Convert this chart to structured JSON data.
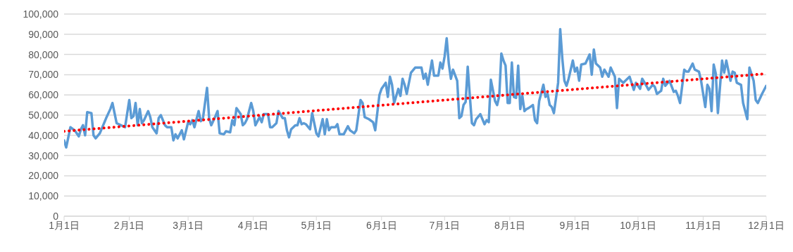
{
  "chart_data": {
    "type": "line",
    "grid": "y",
    "marker": "none",
    "xlim": [
      "--01-01",
      "--12-01"
    ],
    "xticks": [
      {
        "value": "--01-01",
        "label": "1月1日"
      },
      {
        "value": "--02-01",
        "label": "2月1日"
      },
      {
        "value": "--03-01",
        "label": "3月1日"
      },
      {
        "value": "--04-01",
        "label": "4月1日"
      },
      {
        "value": "--05-01",
        "label": "5月1日"
      },
      {
        "value": "--06-01",
        "label": "6月1日"
      },
      {
        "value": "--07-01",
        "label": "7月1日"
      },
      {
        "value": "--08-01",
        "label": "8月1日"
      },
      {
        "value": "--09-01",
        "label": "9月1日"
      },
      {
        "value": "--10-01",
        "label": "10月1日"
      },
      {
        "value": "--11-01",
        "label": "11月1日"
      },
      {
        "value": "--12-01",
        "label": "12月1日"
      }
    ],
    "ylim": [
      0,
      100000
    ],
    "yticks": [
      0,
      {
        "value": 10000,
        "label": "10,000"
      },
      {
        "value": 20000,
        "label": "20,000"
      },
      {
        "value": 30000,
        "label": "30,000"
      },
      {
        "value": 40000,
        "label": "40,000"
      },
      {
        "value": 50000,
        "label": "50,000"
      },
      {
        "value": 60000,
        "label": "60,000"
      },
      {
        "value": 70000,
        "label": "70,000"
      },
      {
        "value": 80000,
        "label": "80,000"
      },
      {
        "value": 90000,
        "label": "90,000"
      },
      {
        "value": 100000,
        "label": "100,000"
      }
    ],
    "series": [
      {
        "type": "line",
        "color": "#5b9bd5",
        "line_style": "solid",
        "x": [
          "--01-01",
          "--01-02",
          "--01-04",
          "--01-06",
          "--01-08",
          "--01-09",
          "--01-10",
          "--01-11",
          "--01-12",
          "--01-14",
          "--01-15",
          "--01-16",
          "--01-18",
          "--01-21",
          "--01-23",
          "--01-24",
          "--01-26",
          "--01-28",
          "--01-30",
          "--02-01",
          "--02-02",
          "--02-03",
          "--02-04",
          "--02-05",
          "--02-06",
          "--02-07",
          "--02-08",
          "--02-10",
          "--02-11",
          "--02-12",
          "--02-14",
          "--02-15",
          "--02-16",
          "--02-18",
          "--02-19",
          "--02-21",
          "--02-22",
          "--02-23",
          "--02-24",
          "--02-26",
          "--02-27",
          "--03-01",
          "--03-02",
          "--03-03",
          "--03-04",
          "--03-06",
          "--03-07",
          "--03-08",
          "--03-10",
          "--03-11",
          "--03-12",
          "--03-14",
          "--03-15",
          "--03-16",
          "--03-18",
          "--03-19",
          "--03-21",
          "--03-22",
          "--03-23",
          "--03-24",
          "--03-26",
          "--03-27",
          "--03-28",
          "--03-29",
          "--03-31",
          "--04-01",
          "--04-02",
          "--04-04",
          "--04-05",
          "--04-06",
          "--04-08",
          "--04-09",
          "--04-10",
          "--04-12",
          "--04-13",
          "--04-15",
          "--04-16",
          "--04-17",
          "--04-18",
          "--04-19",
          "--04-21",
          "--04-22",
          "--04-23",
          "--04-24",
          "--04-25",
          "--04-26",
          "--04-28",
          "--04-29",
          "--05-01",
          "--05-02",
          "--05-04",
          "--05-05",
          "--05-06",
          "--05-07",
          "--05-08",
          "--05-10",
          "--05-11",
          "--05-12",
          "--05-14",
          "--05-16",
          "--05-17",
          "--05-19",
          "--05-20",
          "--05-22",
          "--05-23",
          "--05-24",
          "--05-26",
          "--05-28",
          "--05-29",
          "--05-31",
          "--06-01",
          "--06-03",
          "--06-04",
          "--06-05",
          "--06-06",
          "--06-07",
          "--06-09",
          "--06-10",
          "--06-11",
          "--06-12",
          "--06-13",
          "--06-15",
          "--06-17",
          "--06-20",
          "--06-21",
          "--06-22",
          "--06-23",
          "--06-25",
          "--06-26",
          "--06-28",
          "--06-29",
          "--06-30",
          "--07-01",
          "--07-02",
          "--07-03",
          "--07-04",
          "--07-05",
          "--07-07",
          "--07-08",
          "--07-09",
          "--07-10",
          "--07-11",
          "--07-12",
          "--07-13",
          "--07-14",
          "--07-15",
          "--07-16",
          "--07-18",
          "--07-20",
          "--07-21",
          "--07-22",
          "--07-23",
          "--07-25",
          "--07-26",
          "--07-27",
          "--07-28",
          "--07-29",
          "--07-30",
          "--07-31",
          "--08-01",
          "--08-02",
          "--08-03",
          "--08-04",
          "--08-05",
          "--08-06",
          "--08-07",
          "--08-08",
          "--08-09",
          "--08-10",
          "--08-12",
          "--08-13",
          "--08-14",
          "--08-15",
          "--08-17",
          "--08-18",
          "--08-19",
          "--08-20",
          "--08-21",
          "--08-22",
          "--08-24",
          "--08-25",
          "--08-26",
          "--08-27",
          "--08-28",
          "--08-29",
          "--08-31",
          "--09-01",
          "--09-02",
          "--09-03",
          "--09-04",
          "--09-06",
          "--09-08",
          "--09-09",
          "--09-10",
          "--09-11",
          "--09-13",
          "--09-14",
          "--09-15",
          "--09-17",
          "--09-18",
          "--09-20",
          "--09-21",
          "--09-22",
          "--09-24",
          "--09-25",
          "--09-27",
          "--09-29",
          "--09-30",
          "--10-02",
          "--10-03",
          "--10-05",
          "--10-06",
          "--10-08",
          "--10-09",
          "--10-10",
          "--10-12",
          "--10-13",
          "--10-14",
          "--10-16",
          "--10-18",
          "--10-19",
          "--10-20",
          "--10-21",
          "--10-23",
          "--10-24",
          "--10-25",
          "--10-27",
          "--10-28",
          "--10-30",
          "--10-31",
          "--11-02",
          "--11-03",
          "--11-04",
          "--11-05",
          "--11-06",
          "--11-07",
          "--11-08",
          "--11-10",
          "--11-11",
          "--11-12",
          "--11-14",
          "--11-15",
          "--11-16",
          "--11-17",
          "--11-19",
          "--11-20",
          "--11-22",
          "--11-23",
          "--11-25",
          "--11-26",
          "--11-27",
          "--11-29",
          "--12-01"
        ],
        "values": [
          37500,
          34000,
          44000,
          42500,
          39500,
          43000,
          45000,
          40000,
          51500,
          51000,
          40000,
          38500,
          41000,
          48500,
          53000,
          56000,
          46000,
          45000,
          44000,
          57500,
          48500,
          49500,
          56000,
          45000,
          53000,
          46000,
          47500,
          52000,
          49000,
          44000,
          41000,
          48500,
          50000,
          45000,
          44000,
          44000,
          37500,
          40500,
          38500,
          42500,
          38000,
          46500,
          45500,
          47500,
          44000,
          52000,
          47000,
          48000,
          63500,
          48500,
          45000,
          49500,
          52000,
          41000,
          40500,
          42000,
          41500,
          47500,
          45000,
          53500,
          50500,
          45000,
          46000,
          48000,
          56000,
          52000,
          45000,
          49000,
          46500,
          50500,
          50500,
          44000,
          44000,
          46000,
          52000,
          48500,
          48500,
          42500,
          39000,
          43000,
          45000,
          45000,
          48500,
          45500,
          46000,
          45500,
          43000,
          51000,
          41000,
          39500,
          48000,
          40500,
          48000,
          42500,
          44000,
          44000,
          45500,
          40500,
          40500,
          44500,
          42500,
          41000,
          42500,
          57500,
          56000,
          49000,
          48000,
          46500,
          42500,
          60000,
          63000,
          66000,
          59000,
          69000,
          65000,
          56000,
          63000,
          59500,
          68000,
          65000,
          60500,
          71000,
          73500,
          73500,
          68000,
          70500,
          65000,
          77000,
          69500,
          69500,
          76000,
          73000,
          79000,
          88000,
          75500,
          68000,
          72500,
          67000,
          48500,
          49500,
          55000,
          56500,
          74000,
          59500,
          46000,
          45000,
          48000,
          50500,
          45500,
          47500,
          46500,
          67500,
          57000,
          55000,
          59500,
          80500,
          77000,
          74500,
          56000,
          56000,
          76000,
          59000,
          58500,
          74500,
          53000,
          59500,
          52000,
          53000,
          53500,
          55000,
          47500,
          46000,
          57000,
          65000,
          59000,
          60500,
          55000,
          54000,
          51000,
          66000,
          92500,
          78000,
          67000,
          64500,
          68000,
          77000,
          71500,
          73500,
          67000,
          75000,
          75500,
          80000,
          70000,
          82500,
          75500,
          73500,
          69000,
          72500,
          69000,
          73500,
          69000,
          53500,
          68000,
          66000,
          67000,
          69000,
          62500,
          66000,
          63000,
          68000,
          64500,
          62500,
          65000,
          64000,
          60500,
          62000,
          68000,
          64500,
          67000,
          61500,
          62000,
          59500,
          56000,
          72500,
          71500,
          71500,
          75500,
          72500,
          71500,
          67000,
          54000,
          65000,
          63000,
          52000,
          75000,
          70500,
          51000,
          77000,
          71000,
          77000,
          67000,
          71500,
          71000,
          66000,
          65000,
          56000,
          48000,
          73500,
          67000,
          57500,
          56000,
          60500,
          64500
        ]
      },
      {
        "type": "line",
        "color": "#ff0000",
        "line_style": "dotted",
        "x": [
          "--01-01",
          "--12-01"
        ],
        "values": [
          42000,
          70500
        ]
      }
    ]
  }
}
